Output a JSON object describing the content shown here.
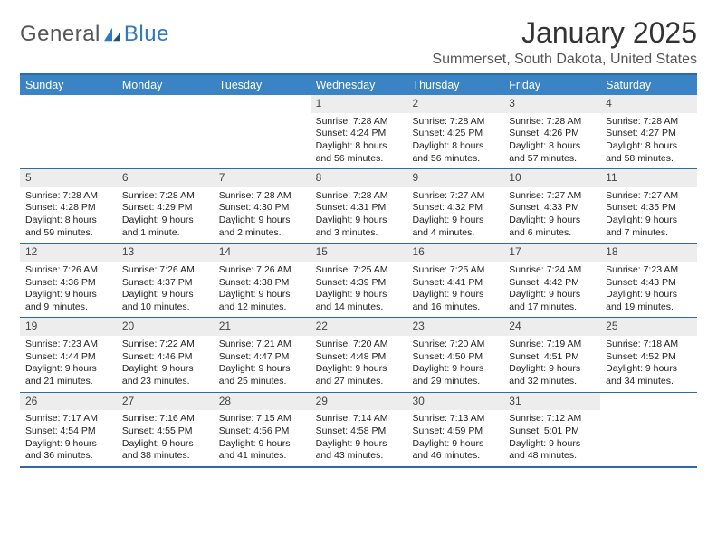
{
  "brand": {
    "text1": "General",
    "text2": "Blue"
  },
  "title": "January 2025",
  "location": "Summerset, South Dakota, United States",
  "colors": {
    "header_bg": "#3a83c4",
    "border": "#2f6aa3",
    "daynum_bg": "#ededed"
  },
  "weekdays": [
    "Sunday",
    "Monday",
    "Tuesday",
    "Wednesday",
    "Thursday",
    "Friday",
    "Saturday"
  ],
  "weeks": [
    [
      null,
      null,
      null,
      {
        "day": "1",
        "sunrise": "Sunrise: 7:28 AM",
        "sunset": "Sunset: 4:24 PM",
        "daylight": "Daylight: 8 hours and 56 minutes."
      },
      {
        "day": "2",
        "sunrise": "Sunrise: 7:28 AM",
        "sunset": "Sunset: 4:25 PM",
        "daylight": "Daylight: 8 hours and 56 minutes."
      },
      {
        "day": "3",
        "sunrise": "Sunrise: 7:28 AM",
        "sunset": "Sunset: 4:26 PM",
        "daylight": "Daylight: 8 hours and 57 minutes."
      },
      {
        "day": "4",
        "sunrise": "Sunrise: 7:28 AM",
        "sunset": "Sunset: 4:27 PM",
        "daylight": "Daylight: 8 hours and 58 minutes."
      }
    ],
    [
      {
        "day": "5",
        "sunrise": "Sunrise: 7:28 AM",
        "sunset": "Sunset: 4:28 PM",
        "daylight": "Daylight: 8 hours and 59 minutes."
      },
      {
        "day": "6",
        "sunrise": "Sunrise: 7:28 AM",
        "sunset": "Sunset: 4:29 PM",
        "daylight": "Daylight: 9 hours and 1 minute."
      },
      {
        "day": "7",
        "sunrise": "Sunrise: 7:28 AM",
        "sunset": "Sunset: 4:30 PM",
        "daylight": "Daylight: 9 hours and 2 minutes."
      },
      {
        "day": "8",
        "sunrise": "Sunrise: 7:28 AM",
        "sunset": "Sunset: 4:31 PM",
        "daylight": "Daylight: 9 hours and 3 minutes."
      },
      {
        "day": "9",
        "sunrise": "Sunrise: 7:27 AM",
        "sunset": "Sunset: 4:32 PM",
        "daylight": "Daylight: 9 hours and 4 minutes."
      },
      {
        "day": "10",
        "sunrise": "Sunrise: 7:27 AM",
        "sunset": "Sunset: 4:33 PM",
        "daylight": "Daylight: 9 hours and 6 minutes."
      },
      {
        "day": "11",
        "sunrise": "Sunrise: 7:27 AM",
        "sunset": "Sunset: 4:35 PM",
        "daylight": "Daylight: 9 hours and 7 minutes."
      }
    ],
    [
      {
        "day": "12",
        "sunrise": "Sunrise: 7:26 AM",
        "sunset": "Sunset: 4:36 PM",
        "daylight": "Daylight: 9 hours and 9 minutes."
      },
      {
        "day": "13",
        "sunrise": "Sunrise: 7:26 AM",
        "sunset": "Sunset: 4:37 PM",
        "daylight": "Daylight: 9 hours and 10 minutes."
      },
      {
        "day": "14",
        "sunrise": "Sunrise: 7:26 AM",
        "sunset": "Sunset: 4:38 PM",
        "daylight": "Daylight: 9 hours and 12 minutes."
      },
      {
        "day": "15",
        "sunrise": "Sunrise: 7:25 AM",
        "sunset": "Sunset: 4:39 PM",
        "daylight": "Daylight: 9 hours and 14 minutes."
      },
      {
        "day": "16",
        "sunrise": "Sunrise: 7:25 AM",
        "sunset": "Sunset: 4:41 PM",
        "daylight": "Daylight: 9 hours and 16 minutes."
      },
      {
        "day": "17",
        "sunrise": "Sunrise: 7:24 AM",
        "sunset": "Sunset: 4:42 PM",
        "daylight": "Daylight: 9 hours and 17 minutes."
      },
      {
        "day": "18",
        "sunrise": "Sunrise: 7:23 AM",
        "sunset": "Sunset: 4:43 PM",
        "daylight": "Daylight: 9 hours and 19 minutes."
      }
    ],
    [
      {
        "day": "19",
        "sunrise": "Sunrise: 7:23 AM",
        "sunset": "Sunset: 4:44 PM",
        "daylight": "Daylight: 9 hours and 21 minutes."
      },
      {
        "day": "20",
        "sunrise": "Sunrise: 7:22 AM",
        "sunset": "Sunset: 4:46 PM",
        "daylight": "Daylight: 9 hours and 23 minutes."
      },
      {
        "day": "21",
        "sunrise": "Sunrise: 7:21 AM",
        "sunset": "Sunset: 4:47 PM",
        "daylight": "Daylight: 9 hours and 25 minutes."
      },
      {
        "day": "22",
        "sunrise": "Sunrise: 7:20 AM",
        "sunset": "Sunset: 4:48 PM",
        "daylight": "Daylight: 9 hours and 27 minutes."
      },
      {
        "day": "23",
        "sunrise": "Sunrise: 7:20 AM",
        "sunset": "Sunset: 4:50 PM",
        "daylight": "Daylight: 9 hours and 29 minutes."
      },
      {
        "day": "24",
        "sunrise": "Sunrise: 7:19 AM",
        "sunset": "Sunset: 4:51 PM",
        "daylight": "Daylight: 9 hours and 32 minutes."
      },
      {
        "day": "25",
        "sunrise": "Sunrise: 7:18 AM",
        "sunset": "Sunset: 4:52 PM",
        "daylight": "Daylight: 9 hours and 34 minutes."
      }
    ],
    [
      {
        "day": "26",
        "sunrise": "Sunrise: 7:17 AM",
        "sunset": "Sunset: 4:54 PM",
        "daylight": "Daylight: 9 hours and 36 minutes."
      },
      {
        "day": "27",
        "sunrise": "Sunrise: 7:16 AM",
        "sunset": "Sunset: 4:55 PM",
        "daylight": "Daylight: 9 hours and 38 minutes."
      },
      {
        "day": "28",
        "sunrise": "Sunrise: 7:15 AM",
        "sunset": "Sunset: 4:56 PM",
        "daylight": "Daylight: 9 hours and 41 minutes."
      },
      {
        "day": "29",
        "sunrise": "Sunrise: 7:14 AM",
        "sunset": "Sunset: 4:58 PM",
        "daylight": "Daylight: 9 hours and 43 minutes."
      },
      {
        "day": "30",
        "sunrise": "Sunrise: 7:13 AM",
        "sunset": "Sunset: 4:59 PM",
        "daylight": "Daylight: 9 hours and 46 minutes."
      },
      {
        "day": "31",
        "sunrise": "Sunrise: 7:12 AM",
        "sunset": "Sunset: 5:01 PM",
        "daylight": "Daylight: 9 hours and 48 minutes."
      },
      null
    ]
  ]
}
